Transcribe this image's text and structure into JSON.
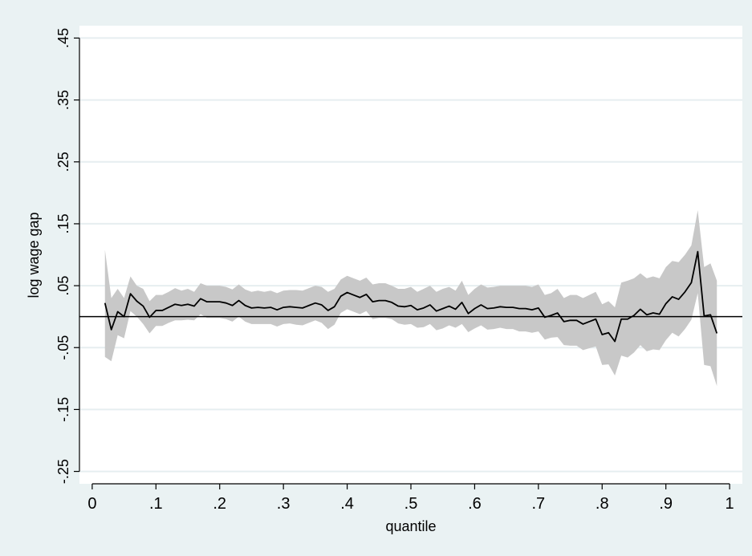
{
  "chart_data": {
    "type": "line",
    "title": "",
    "xlabel": "quantile",
    "ylabel": "log wage gap",
    "xlim": [
      -0.02,
      1.02
    ],
    "ylim": [
      -0.27,
      0.47
    ],
    "xticks": [
      0,
      0.1,
      0.2,
      0.3,
      0.4,
      0.5,
      0.6,
      0.7,
      0.8,
      0.9,
      1
    ],
    "xtick_labels": [
      "0",
      ".1",
      ".2",
      ".3",
      ".4",
      ".5",
      ".6",
      ".7",
      ".8",
      ".9",
      "1"
    ],
    "yticks": [
      -0.25,
      -0.15,
      -0.05,
      0.05,
      0.15,
      0.25,
      0.35,
      0.45
    ],
    "ytick_labels": [
      "-.25",
      "-.15",
      "-.05",
      ".05",
      ".15",
      ".25",
      ".35",
      ".45"
    ],
    "grid": true,
    "reference_line_y": 0,
    "colors": {
      "background": "#eaf2f3",
      "plot_area": "#ffffff",
      "band": "#c8c8c8",
      "line": "#000000",
      "grid": "#e6eef0"
    },
    "x": [
      0.02,
      0.03,
      0.04,
      0.05,
      0.06,
      0.07,
      0.08,
      0.09,
      0.1,
      0.11,
      0.12,
      0.13,
      0.14,
      0.15,
      0.16,
      0.17,
      0.18,
      0.19,
      0.2,
      0.21,
      0.22,
      0.23,
      0.24,
      0.25,
      0.26,
      0.27,
      0.28,
      0.29,
      0.3,
      0.31,
      0.32,
      0.33,
      0.34,
      0.35,
      0.36,
      0.37,
      0.38,
      0.39,
      0.4,
      0.41,
      0.42,
      0.43,
      0.44,
      0.45,
      0.46,
      0.47,
      0.48,
      0.49,
      0.5,
      0.51,
      0.52,
      0.53,
      0.54,
      0.55,
      0.56,
      0.57,
      0.58,
      0.59,
      0.6,
      0.61,
      0.62,
      0.63,
      0.64,
      0.65,
      0.66,
      0.67,
      0.68,
      0.69,
      0.7,
      0.71,
      0.72,
      0.73,
      0.74,
      0.75,
      0.76,
      0.77,
      0.78,
      0.79,
      0.8,
      0.81,
      0.82,
      0.83,
      0.84,
      0.85,
      0.86,
      0.87,
      0.88,
      0.89,
      0.9,
      0.91,
      0.92,
      0.93,
      0.94,
      0.95,
      0.96,
      0.97,
      0.98
    ],
    "series": [
      {
        "values": [
          0.022,
          -0.021,
          0.008,
          0.0,
          0.037,
          0.025,
          0.017,
          -0.001,
          0.01,
          0.01,
          0.015,
          0.02,
          0.018,
          0.02,
          0.017,
          0.029,
          0.024,
          0.024,
          0.024,
          0.022,
          0.018,
          0.026,
          0.018,
          0.014,
          0.015,
          0.014,
          0.015,
          0.011,
          0.015,
          0.016,
          0.015,
          0.014,
          0.018,
          0.022,
          0.019,
          0.01,
          0.016,
          0.033,
          0.039,
          0.035,
          0.031,
          0.036,
          0.024,
          0.026,
          0.026,
          0.023,
          0.017,
          0.016,
          0.018,
          0.011,
          0.014,
          0.019,
          0.009,
          0.013,
          0.017,
          0.012,
          0.023,
          0.005,
          0.013,
          0.019,
          0.013,
          0.014,
          0.016,
          0.015,
          0.015,
          0.013,
          0.013,
          0.011,
          0.014,
          -0.001,
          0.002,
          0.006,
          -0.008,
          -0.006,
          -0.006,
          -0.012,
          -0.008,
          -0.004,
          -0.029,
          -0.026,
          -0.04,
          -0.004,
          -0.004,
          0.002,
          0.012,
          0.003,
          0.006,
          0.004,
          0.021,
          0.032,
          0.028,
          0.04,
          0.055,
          0.105,
          0.001,
          0.003,
          -0.027
        ]
      }
    ],
    "band_upper": [
      0.108,
      0.03,
      0.045,
      0.03,
      0.065,
      0.05,
      0.045,
      0.025,
      0.035,
      0.035,
      0.04,
      0.046,
      0.042,
      0.045,
      0.04,
      0.054,
      0.05,
      0.05,
      0.05,
      0.048,
      0.044,
      0.052,
      0.044,
      0.04,
      0.042,
      0.04,
      0.042,
      0.038,
      0.042,
      0.043,
      0.043,
      0.042,
      0.046,
      0.05,
      0.048,
      0.04,
      0.045,
      0.06,
      0.066,
      0.062,
      0.058,
      0.063,
      0.052,
      0.054,
      0.054,
      0.05,
      0.045,
      0.045,
      0.048,
      0.04,
      0.045,
      0.05,
      0.04,
      0.045,
      0.048,
      0.042,
      0.058,
      0.035,
      0.045,
      0.052,
      0.047,
      0.048,
      0.05,
      0.05,
      0.05,
      0.05,
      0.05,
      0.048,
      0.052,
      0.035,
      0.038,
      0.045,
      0.03,
      0.035,
      0.035,
      0.03,
      0.035,
      0.04,
      0.02,
      0.025,
      0.015,
      0.055,
      0.058,
      0.062,
      0.07,
      0.062,
      0.065,
      0.062,
      0.08,
      0.09,
      0.088,
      0.1,
      0.115,
      0.172,
      0.08,
      0.086,
      0.058
    ],
    "band_lower": [
      -0.065,
      -0.072,
      -0.03,
      -0.035,
      0.009,
      0.0,
      -0.012,
      -0.027,
      -0.015,
      -0.015,
      -0.01,
      -0.006,
      -0.006,
      -0.005,
      -0.006,
      0.004,
      -0.002,
      -0.002,
      -0.002,
      -0.004,
      -0.008,
      0.0,
      -0.008,
      -0.012,
      -0.012,
      -0.012,
      -0.012,
      -0.016,
      -0.012,
      -0.011,
      -0.013,
      -0.014,
      -0.01,
      -0.006,
      -0.01,
      -0.02,
      -0.013,
      0.006,
      0.012,
      0.008,
      0.004,
      0.009,
      -0.004,
      -0.002,
      -0.002,
      -0.004,
      -0.011,
      -0.013,
      -0.012,
      -0.018,
      -0.017,
      -0.012,
      -0.022,
      -0.019,
      -0.014,
      -0.018,
      -0.012,
      -0.025,
      -0.019,
      -0.014,
      -0.021,
      -0.02,
      -0.018,
      -0.02,
      -0.02,
      -0.024,
      -0.024,
      -0.026,
      -0.024,
      -0.037,
      -0.034,
      -0.033,
      -0.046,
      -0.047,
      -0.047,
      -0.054,
      -0.051,
      -0.048,
      -0.078,
      -0.077,
      -0.095,
      -0.063,
      -0.066,
      -0.058,
      -0.046,
      -0.056,
      -0.053,
      -0.054,
      -0.038,
      -0.026,
      -0.032,
      -0.02,
      -0.005,
      0.038,
      -0.078,
      -0.08,
      -0.112
    ]
  }
}
